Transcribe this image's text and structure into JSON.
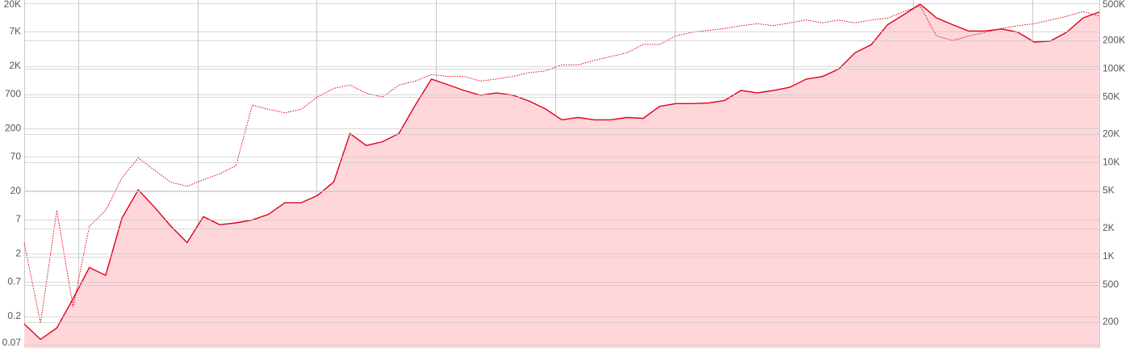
{
  "chart_data": {
    "type": "line",
    "log_scale": true,
    "grid": true,
    "categories": [
      null,
      null,
      null,
      null,
      null,
      null,
      null,
      null,
      null,
      null,
      null,
      null,
      null,
      null,
      null,
      null,
      null,
      null,
      null,
      null,
      null,
      null,
      null,
      null,
      null,
      null,
      null,
      null,
      null,
      null,
      null,
      null,
      null,
      null,
      null,
      null,
      null,
      null,
      null,
      null,
      null,
      null,
      null,
      null,
      null,
      null,
      null,
      null,
      null,
      null,
      null,
      null,
      null,
      null,
      null,
      null,
      null,
      null,
      null,
      null,
      null,
      null,
      null,
      null,
      null,
      null,
      null
    ],
    "series": [
      {
        "color": "#e0001b",
        "fill": "#ffd7da",
        "style": "solid",
        "values": [
          0.15,
          0.085,
          0.13,
          0.38,
          1.2,
          0.9,
          7.4,
          21,
          11,
          5.5,
          3,
          7.8,
          5.8,
          6.2,
          6.9,
          8.5,
          13,
          13,
          17,
          28,
          166,
          107,
          123,
          166,
          470,
          1230,
          1000,
          810,
          680,
          740,
          680,
          550,
          410,
          275,
          300,
          275,
          275,
          300,
          290,
          450,
          500,
          500,
          510,
          560,
          810,
          740,
          810,
          910,
          1230,
          1350,
          1780,
          3240,
          4370,
          9100,
          13200,
          19500,
          11700,
          9100,
          7200,
          7200,
          7800,
          6900,
          4800,
          5000,
          6900,
          11700,
          14500
        ]
      },
      {
        "color": "#e0001b",
        "style": "dotted",
        "axis": "y2",
        "values": [
          1400,
          195,
          3100,
          290,
          2100,
          3100,
          6900,
          11200,
          8300,
          6200,
          5600,
          6600,
          7600,
          9300,
          41000,
          37000,
          34000,
          37000,
          50000,
          62000,
          67000,
          55000,
          50000,
          67000,
          74000,
          87000,
          83000,
          83000,
          74000,
          78000,
          83000,
          91000,
          95000,
          110000,
          110000,
          123000,
          135000,
          148000,
          182000,
          182000,
          224000,
          245000,
          257000,
          269000,
          288000,
          302000,
          288000,
          309000,
          331000,
          309000,
          331000,
          309000,
          331000,
          347000,
          407000,
          468000,
          224000,
          200000,
          224000,
          245000,
          269000,
          288000,
          302000,
          331000,
          363000,
          407000,
          363000
        ]
      }
    ],
    "ylim": [
      0.062,
      22600
    ],
    "yticks": [
      0.07,
      0.2,
      0.7,
      2,
      7,
      20,
      70,
      200,
      700,
      {
        "value": 2000,
        "label": "2K"
      },
      {
        "value": 7000,
        "label": "7K"
      },
      {
        "value": 20000,
        "label": "20K"
      }
    ],
    "y2lim": [
      106,
      541000
    ],
    "y2ticks": [
      200,
      500,
      {
        "value": 1000,
        "label": "1K"
      },
      {
        "value": 2000,
        "label": "2K"
      },
      {
        "value": 5000,
        "label": "5K"
      },
      {
        "value": 10000,
        "label": "10K"
      },
      {
        "value": 20000,
        "label": "20K"
      },
      {
        "value": 50000,
        "label": "50K"
      },
      {
        "value": 100000,
        "label": "100K"
      },
      {
        "value": 200000,
        "label": "200K"
      },
      {
        "value": 500000,
        "label": "500K"
      }
    ]
  }
}
